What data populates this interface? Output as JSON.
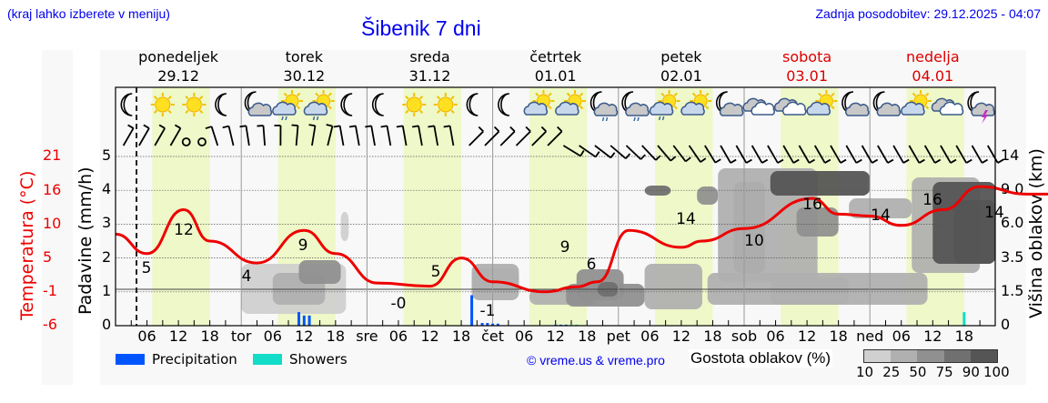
{
  "header": {
    "menu_hint": "(kraj lahko izberete v meniju)",
    "title": "Šibenik 7 dni",
    "last_update": "Zadnja posodobitev: 29.12.2025 - 04:07"
  },
  "days": [
    {
      "name": "ponedeljek",
      "date": "29.12",
      "weekend": false
    },
    {
      "name": "torek",
      "date": "30.12",
      "weekend": false
    },
    {
      "name": "sreda",
      "date": "31.12",
      "weekend": false
    },
    {
      "name": "četrtek",
      "date": "01.01",
      "weekend": false
    },
    {
      "name": "petek",
      "date": "02.01",
      "weekend": false
    },
    {
      "name": "sobota",
      "date": "03.01",
      "weekend": true
    },
    {
      "name": "nedelja",
      "date": "04.01",
      "weekend": true
    }
  ],
  "axes": {
    "temp_label": "Temperatura (°C)",
    "precip_label": "Padavine (mm/h)",
    "cloud_label": "Višina oblakov (km)",
    "temp_ticks": [
      "21",
      "16",
      "10",
      "5",
      "-1",
      "-6"
    ],
    "precip_ticks": [
      "5",
      "4",
      "3",
      "2",
      "1",
      "0"
    ],
    "cloud_ticks": [
      "14",
      "9.0",
      "6.0",
      "3.5",
      "1.5",
      "0"
    ],
    "x_ticks": [
      "06",
      "12",
      "18",
      "tor",
      "06",
      "12",
      "18",
      "sre",
      "06",
      "12",
      "18",
      "čet",
      "06",
      "12",
      "18",
      "pet",
      "06",
      "12",
      "18",
      "sob",
      "06",
      "12",
      "18",
      "ned",
      "06",
      "12",
      "18"
    ]
  },
  "legend": {
    "precipitation": "Precipitation",
    "showers": "Showers",
    "copyright": "© vreme.us & vreme.pro",
    "cloud_density_title": "Gostota oblakov (%)",
    "cloud_density_steps": [
      "10",
      "25",
      "50",
      "75",
      "90",
      "100"
    ]
  },
  "colors": {
    "temperature_line": "#ee0000",
    "precipitation": "#0055ff",
    "showers": "#11ddc8",
    "daylight": "#eef8c8",
    "link": "#0000ee",
    "weekend": "#dd0000",
    "cloud_shades": [
      "#d0d0d0",
      "#b0b0b0",
      "#909090",
      "#707070",
      "#555555"
    ]
  },
  "weather_icons": [
    "moon",
    "sun",
    "sun",
    "moon",
    "moon-cloud",
    "sun-cloud-rain",
    "sun-cloud-rain",
    "moon",
    "moon",
    "sun",
    "sun",
    "moon",
    "moon",
    "sun-cloud",
    "sun-cloud",
    "moon-cloud-rain",
    "moon-cloud-rain",
    "sun-cloud-rain",
    "sun-cloud",
    "moon-cloud",
    "clouds",
    "clouds",
    "sun-cloud",
    "moon-cloud",
    "moon-cloud",
    "sun-cloud",
    "clouds",
    "moon-cloud-thunder"
  ],
  "chart_data": {
    "type": "line",
    "title": "Šibenik 7 dni",
    "xlabel": "",
    "ylabel": "Temperatura (°C) / Padavine (mm/h)",
    "y2label": "Višina oblakov (km)",
    "ylim_temp": [
      -6,
      21
    ],
    "ylim_precip": [
      0,
      5
    ],
    "grid": true,
    "series": [
      {
        "name": "Temperatura",
        "hours": [
          0,
          6,
          13,
          18,
          27,
          36,
          42,
          50,
          60,
          66,
          72,
          82,
          88,
          92,
          98,
          108,
          112,
          120,
          133,
          138,
          144,
          150,
          158,
          165,
          174,
          182,
          190,
          199,
          208
        ],
        "values": [
          8.6,
          5.5,
          12.5,
          7.5,
          4.0,
          9.2,
          5.5,
          0.8,
          0.3,
          4.8,
          1.0,
          -0.6,
          0.2,
          1.0,
          9.2,
          6.5,
          7.5,
          9.5,
          14.3,
          11.8,
          11.5,
          10.0,
          12.5,
          16.2,
          15.0,
          15.0,
          16.0,
          17.2,
          16.0
        ]
      },
      {
        "name": "Precipitation",
        "hours": [
          35,
          36,
          37,
          68,
          70,
          71,
          72,
          73,
          84,
          85,
          86
        ],
        "values": [
          0.4,
          0.3,
          0.3,
          0.9,
          0.08,
          0.08,
          0.06,
          0.06,
          0.03,
          0.03,
          0.03
        ]
      },
      {
        "name": "Showers",
        "hours": [
          87,
          88,
          162
        ],
        "values": [
          0.03,
          0.03,
          0.4
        ]
      }
    ],
    "labels": [
      {
        "hour": 6,
        "value": "5"
      },
      {
        "hour": 13,
        "value": "12"
      },
      {
        "hour": 27,
        "value": "4"
      },
      {
        "hour": 36,
        "value": "9"
      },
      {
        "hour": 50,
        "value": "-0"
      },
      {
        "hour": 60,
        "value": "5"
      },
      {
        "hour": 74,
        "value": "-1"
      },
      {
        "hour": 84,
        "value": "9"
      },
      {
        "hour": 88,
        "value": "6"
      },
      {
        "hour": 110,
        "value": "14"
      },
      {
        "hour": 119,
        "value": "10"
      },
      {
        "hour": 127,
        "value": "16"
      },
      {
        "hour": 143,
        "value": "14"
      },
      {
        "hour": 151,
        "value": "16"
      },
      {
        "hour": 167,
        "value": "14"
      }
    ]
  }
}
